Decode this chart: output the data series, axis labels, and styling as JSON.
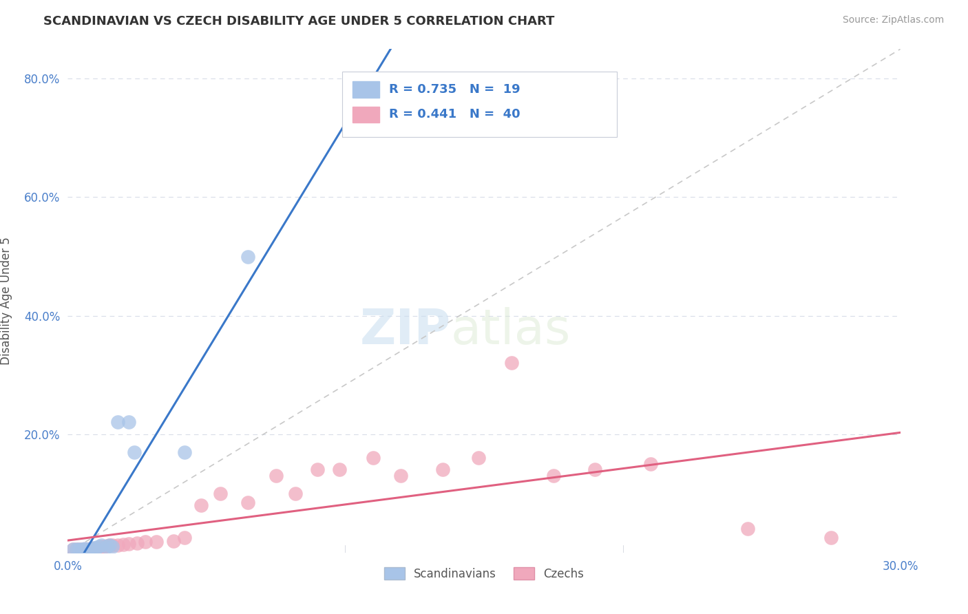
{
  "title": "SCANDINAVIAN VS CZECH DISABILITY AGE UNDER 5 CORRELATION CHART",
  "source": "Source: ZipAtlas.com",
  "ylabel": "Disability Age Under 5",
  "background_color": "#ffffff",
  "xlim": [
    0.0,
    0.3
  ],
  "ylim": [
    0.0,
    0.85
  ],
  "scand_color": "#a8c4e8",
  "czech_color": "#f0a8bc",
  "scand_line_color": "#3a78c9",
  "czech_line_color": "#e06080",
  "ref_line_color": "#c8c8c8",
  "grid_color": "#d8dce8",
  "scand_points_x": [
    0.002,
    0.003,
    0.004,
    0.005,
    0.006,
    0.007,
    0.008,
    0.009,
    0.01,
    0.011,
    0.012,
    0.014,
    0.015,
    0.016,
    0.018,
    0.022,
    0.024,
    0.042,
    0.065
  ],
  "scand_points_y": [
    0.005,
    0.005,
    0.005,
    0.005,
    0.007,
    0.006,
    0.005,
    0.008,
    0.008,
    0.01,
    0.012,
    0.01,
    0.012,
    0.01,
    0.22,
    0.22,
    0.17,
    0.17,
    0.5
  ],
  "czech_points_x": [
    0.002,
    0.003,
    0.004,
    0.005,
    0.006,
    0.007,
    0.008,
    0.009,
    0.01,
    0.011,
    0.012,
    0.013,
    0.014,
    0.015,
    0.016,
    0.018,
    0.02,
    0.022,
    0.025,
    0.028,
    0.032,
    0.038,
    0.042,
    0.048,
    0.055,
    0.065,
    0.075,
    0.082,
    0.09,
    0.098,
    0.11,
    0.12,
    0.135,
    0.148,
    0.16,
    0.175,
    0.19,
    0.21,
    0.245,
    0.275
  ],
  "czech_points_y": [
    0.005,
    0.005,
    0.005,
    0.005,
    0.005,
    0.006,
    0.007,
    0.007,
    0.008,
    0.008,
    0.01,
    0.01,
    0.011,
    0.012,
    0.012,
    0.013,
    0.014,
    0.015,
    0.016,
    0.018,
    0.018,
    0.02,
    0.025,
    0.08,
    0.1,
    0.085,
    0.13,
    0.1,
    0.14,
    0.14,
    0.16,
    0.13,
    0.14,
    0.16,
    0.32,
    0.13,
    0.14,
    0.15,
    0.04,
    0.025
  ],
  "scand_legend_label": "R = 0.735   N = 19",
  "czech_legend_label": "R = 0.441   N = 40"
}
